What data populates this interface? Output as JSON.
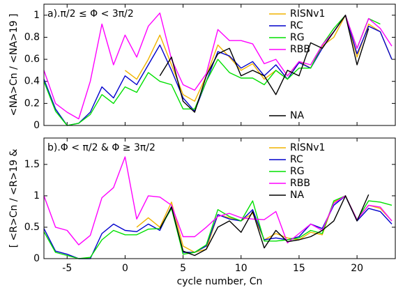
{
  "chart_data": [
    {
      "type": "line",
      "annotation": "a).π/2 ≤ Φ < 3π/2",
      "ylabel": "<NA>Cn / <NA>19 ]",
      "x": [
        -7,
        -6,
        -5,
        -4,
        -3,
        -2,
        -1,
        0,
        1,
        2,
        3,
        4,
        5,
        6,
        7,
        8,
        9,
        10,
        11,
        12,
        13,
        14,
        15,
        16,
        17,
        18,
        19,
        20,
        21,
        22,
        23
      ],
      "xlim": [
        -7,
        23.3
      ],
      "xticks": [
        -5,
        0,
        5,
        10,
        15,
        20
      ],
      "ylim": [
        0,
        1.1
      ],
      "yticks": [
        0,
        0.2,
        0.4,
        0.6,
        0.8,
        1
      ],
      "legend": "upper right",
      "series": [
        {
          "name": "RISNv1",
          "color": "#f0b400",
          "values": [
            null,
            null,
            null,
            null,
            null,
            null,
            null,
            0.5,
            0.42,
            0.6,
            0.82,
            0.55,
            0.28,
            0.22,
            0.45,
            0.73,
            0.62,
            0.5,
            0.56,
            0.42,
            0.5,
            0.42,
            0.58,
            0.52,
            0.72,
            0.8,
            1.0,
            0.62,
            0.92,
            0.85,
            0.6
          ]
        },
        {
          "name": "RC",
          "color": "#0000cc",
          "values": [
            0.42,
            0.15,
            0.0,
            0.02,
            0.12,
            0.35,
            0.25,
            0.45,
            0.37,
            0.55,
            0.73,
            0.5,
            0.25,
            0.13,
            0.4,
            0.67,
            0.63,
            0.52,
            0.58,
            0.45,
            0.55,
            0.42,
            0.57,
            0.52,
            0.7,
            0.85,
            1.0,
            0.65,
            0.9,
            0.85,
            0.6
          ]
        },
        {
          "name": "RG",
          "color": "#00e000",
          "values": [
            0.4,
            0.13,
            0.0,
            0.02,
            0.1,
            0.28,
            0.2,
            0.35,
            0.3,
            0.48,
            0.4,
            0.37,
            0.15,
            0.15,
            0.4,
            0.6,
            0.48,
            0.43,
            0.43,
            0.37,
            0.5,
            0.42,
            0.52,
            0.52,
            0.73,
            0.88,
            1.0,
            0.7,
            0.97,
            0.92,
            null
          ]
        },
        {
          "name": "RBB",
          "color": "#ff00ff",
          "values": [
            0.5,
            0.2,
            0.12,
            0.06,
            0.4,
            0.92,
            0.55,
            0.82,
            0.62,
            0.9,
            1.02,
            0.6,
            0.37,
            0.32,
            0.47,
            0.87,
            0.77,
            0.77,
            0.74,
            0.56,
            0.6,
            0.45,
            0.58,
            0.55,
            0.73,
            0.85,
            1.0,
            0.7,
            0.97,
            0.88,
            0.72
          ]
        },
        {
          "name": "NA",
          "color": "#000000",
          "values": [
            null,
            null,
            null,
            null,
            null,
            null,
            null,
            null,
            null,
            null,
            0.45,
            0.62,
            0.22,
            0.12,
            0.45,
            0.65,
            0.7,
            0.45,
            0.5,
            0.45,
            0.28,
            0.5,
            0.45,
            0.75,
            0.7,
            0.85,
            1.0,
            0.55,
            0.88,
            null,
            null
          ]
        }
      ]
    },
    {
      "type": "line",
      "annotation": "b).Φ < π/2 & Φ ≥ 3π/2",
      "ylabel": "[ <R>Cn / <R>19   &",
      "xlabel": "cycle number, Cn",
      "x": [
        -7,
        -6,
        -5,
        -4,
        -3,
        -2,
        -1,
        0,
        1,
        2,
        3,
        4,
        5,
        6,
        7,
        8,
        9,
        10,
        11,
        12,
        13,
        14,
        15,
        16,
        17,
        18,
        19,
        20,
        21,
        22,
        23
      ],
      "xlim": [
        -7,
        23.3
      ],
      "xticks": [
        -5,
        0,
        5,
        10,
        15,
        20
      ],
      "ylim": [
        0,
        1.92
      ],
      "yticks": [
        0,
        0.5,
        1,
        1.5
      ],
      "legend": "upper right",
      "series": [
        {
          "name": "RISNv1",
          "color": "#f0b400",
          "values": [
            null,
            null,
            null,
            null,
            null,
            null,
            null,
            null,
            0.5,
            0.65,
            0.5,
            0.9,
            0.2,
            0.1,
            0.15,
            0.7,
            0.65,
            0.6,
            0.72,
            0.3,
            0.4,
            0.33,
            0.3,
            0.42,
            0.38,
            0.9,
            1.0,
            0.62,
            0.85,
            0.8,
            0.6
          ]
        },
        {
          "name": "RC",
          "color": "#0000cc",
          "values": [
            0.48,
            0.12,
            0.07,
            0.0,
            0.0,
            0.4,
            0.55,
            0.45,
            0.43,
            0.55,
            0.45,
            0.83,
            0.1,
            0.1,
            0.2,
            0.7,
            0.63,
            0.6,
            0.78,
            0.3,
            0.33,
            0.3,
            0.35,
            0.55,
            0.48,
            0.85,
            1.0,
            0.6,
            0.8,
            0.75,
            0.55
          ]
        },
        {
          "name": "RG",
          "color": "#00e000",
          "values": [
            0.43,
            0.1,
            0.05,
            0.0,
            0.02,
            0.3,
            0.45,
            0.38,
            0.38,
            0.47,
            0.48,
            0.8,
            0.07,
            0.1,
            0.22,
            0.78,
            0.67,
            0.6,
            0.92,
            0.28,
            0.28,
            0.3,
            0.33,
            0.45,
            0.4,
            0.92,
            1.0,
            0.62,
            0.92,
            0.9,
            0.85
          ]
        },
        {
          "name": "RBB",
          "color": "#ff00ff",
          "values": [
            1.0,
            0.5,
            0.45,
            0.22,
            0.37,
            0.97,
            1.13,
            1.62,
            0.63,
            1.0,
            0.98,
            0.85,
            0.35,
            0.35,
            0.5,
            0.67,
            0.72,
            0.65,
            0.63,
            0.62,
            0.75,
            0.25,
            0.4,
            0.55,
            0.45,
            0.88,
            1.0,
            0.62,
            0.85,
            0.82,
            0.6
          ]
        },
        {
          "name": "NA",
          "color": "#000000",
          "values": [
            null,
            null,
            null,
            null,
            null,
            null,
            null,
            null,
            null,
            null,
            0.48,
            0.82,
            0.12,
            0.05,
            0.15,
            0.5,
            0.6,
            0.42,
            0.75,
            0.17,
            0.45,
            0.27,
            0.3,
            0.35,
            0.45,
            0.6,
            1.0,
            0.6,
            1.02,
            null,
            null
          ]
        }
      ]
    }
  ]
}
